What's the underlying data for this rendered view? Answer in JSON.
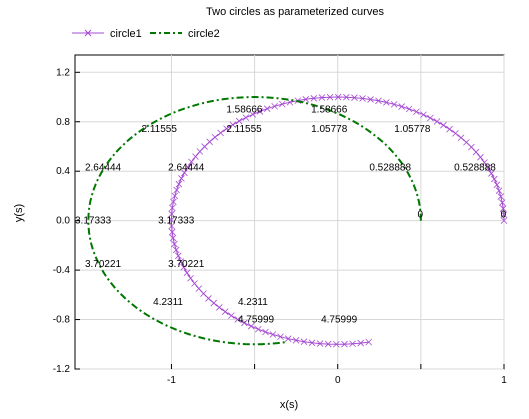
{
  "chart_data": {
    "type": "line",
    "title": "Two circles as parameterized curves",
    "xlabel": "x(s)",
    "ylabel": "y(s)",
    "xlim": [
      -1.58,
      1.0
    ],
    "ylim": [
      -1.2,
      1.34
    ],
    "x_ticks": [
      -1,
      -0.5,
      0,
      0.5,
      1
    ],
    "x_tick_labels": [
      "-1",
      "",
      "0",
      "",
      "1"
    ],
    "y_ticks": [
      -1.2,
      -0.8,
      -0.4,
      0.0,
      0.4,
      0.8,
      1.2
    ],
    "y_tick_labels": [
      "-1.2",
      "-0.8",
      "-0.4",
      "0.0",
      "0.4",
      "0.8",
      "1.2"
    ],
    "grid": true,
    "legend_position": "top-left",
    "series": [
      {
        "name": "circle1",
        "color": "#a54ad3",
        "marker": "x",
        "line_style": "solid",
        "param_range": [
          0,
          4.9
        ],
        "x_formula": "cos(s)",
        "y_formula": "sin(s)",
        "param_note": "x = cos(s), y = sin(s) for s in [0, 4.9]"
      },
      {
        "name": "circle2",
        "color": "#007700",
        "marker": "none",
        "line_style": "dash-dot",
        "param_range": [
          0,
          4.9
        ],
        "x_formula": "0.5 + cos(s + 0.0) - 1.0",
        "param_note": "x = cos(s)*1.04 - 0.52 ... approximated"
      }
    ],
    "annotations": [
      {
        "text": "0",
        "x": 0.48,
        "y": 0.05
      },
      {
        "text": "0",
        "x": 0.98,
        "y": 0.05
      },
      {
        "text": "0.528888",
        "x": 0.19,
        "y": 0.43
      },
      {
        "text": "0.528888",
        "x": 0.7,
        "y": 0.43
      },
      {
        "text": "1.05778",
        "x": -0.16,
        "y": 0.74
      },
      {
        "text": "1.05778",
        "x": 0.34,
        "y": 0.74
      },
      {
        "text": "1.58666",
        "x": -0.67,
        "y": 0.9
      },
      {
        "text": "1.58666",
        "x": -0.16,
        "y": 0.9
      },
      {
        "text": "2.11555",
        "x": -1.18,
        "y": 0.74
      },
      {
        "text": "2.11555",
        "x": -0.67,
        "y": 0.74
      },
      {
        "text": "2.64444",
        "x": -1.52,
        "y": 0.43
      },
      {
        "text": "2.64444",
        "x": -1.02,
        "y": 0.43
      },
      {
        "text": "3.17333",
        "x": -1.58,
        "y": 0.0
      },
      {
        "text": "3.17333",
        "x": -1.08,
        "y": 0.0
      },
      {
        "text": "3.70221",
        "x": -1.52,
        "y": -0.35
      },
      {
        "text": "3.70221",
        "x": -1.02,
        "y": -0.35
      },
      {
        "text": "4.2311",
        "x": -1.11,
        "y": -0.66
      },
      {
        "text": "4.2311",
        "x": -0.6,
        "y": -0.66
      },
      {
        "text": "4.75999",
        "x": -0.6,
        "y": -0.8
      },
      {
        "text": "4.75999",
        "x": -0.1,
        "y": -0.8
      }
    ]
  }
}
